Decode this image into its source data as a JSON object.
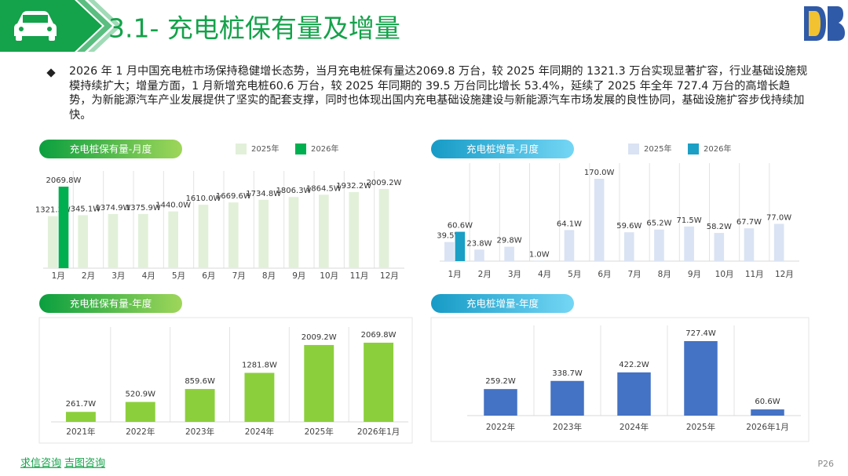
{
  "header": {
    "title": "3.1- 充电桩保有量及增量"
  },
  "summary": "2026 年 1 月中国充电桩市场保持稳健增长态势，当月充电桩保有量达2069.8 万台，较 2025 年同期的 1321.3 万台实现显著扩容，行业基础设施规模持续扩大；增量方面，1 月新增充电桩60.6 万台，较 2025 年同期的 39.5 万台同比增长 53.4%，延续了 2025 年全年 727.4 万台的高增长趋势，为新能源汽车产业发展提供了坚实的配套支撑，同时也体现出国内充电基础设施建设与新能源汽车市场发展的良性协同，基础设施扩容步伐持续加快。",
  "footer": {
    "brands": [
      "求信咨询",
      "吉图咨询"
    ],
    "page": "P26"
  },
  "chart_data": [
    {
      "type": "grouped_bar",
      "title": "充电桩保有量-月度",
      "categories": [
        "1月",
        "2月",
        "3月",
        "4月",
        "5月",
        "6月",
        "7月",
        "8月",
        "9月",
        "10月",
        "11月",
        "12月"
      ],
      "series": [
        {
          "name": "2025年",
          "color": "#e2f0d9",
          "values": [
            1321.3,
            1345.1,
            1374.9,
            1375.9,
            1440.0,
            1610.0,
            1669.6,
            1734.8,
            1806.3,
            1864.5,
            1932.2,
            2009.2
          ],
          "value_labels": [
            "1321.3W",
            "1345.1W",
            "1374.9W",
            "1375.9W",
            "1440.0W",
            "1610.0W",
            "1669.6W",
            "1734.8W",
            "1806.3W",
            "1864.5W",
            "1932.2W",
            "2009.2W"
          ]
        },
        {
          "name": "2026年",
          "color": "#00b050",
          "values": [
            2069.8,
            null,
            null,
            null,
            null,
            null,
            null,
            null,
            null,
            null,
            null,
            null
          ],
          "value_labels": [
            "2069.8W",
            null,
            null,
            null,
            null,
            null,
            null,
            null,
            null,
            null,
            null,
            null
          ]
        }
      ]
    },
    {
      "type": "grouped_bar",
      "title": "充电桩增量-月度",
      "categories": [
        "1月",
        "2月",
        "3月",
        "4月",
        "5月",
        "6月",
        "7月",
        "8月",
        "9月",
        "10月",
        "11月",
        "12月"
      ],
      "series": [
        {
          "name": "2025年",
          "color": "#dae3f3",
          "values": [
            39.5,
            23.8,
            29.8,
            1.0,
            64.1,
            170.0,
            59.6,
            65.2,
            71.5,
            58.2,
            67.7,
            77.0
          ],
          "value_labels": [
            "39.5W",
            "23.8W",
            "29.8W",
            "1.0W",
            "64.1W",
            "170.0W",
            "59.6W",
            "65.2W",
            "71.5W",
            "58.2W",
            "67.7W",
            "77.0W"
          ]
        },
        {
          "name": "2026年",
          "color": "#1b9fc4",
          "values": [
            60.6,
            null,
            null,
            null,
            null,
            null,
            null,
            null,
            null,
            null,
            null,
            null
          ],
          "value_labels": [
            "60.6W",
            null,
            null,
            null,
            null,
            null,
            null,
            null,
            null,
            null,
            null,
            null
          ]
        }
      ]
    },
    {
      "type": "bar",
      "title": "充电桩保有量-年度",
      "categories": [
        "2021年",
        "2022年",
        "2023年",
        "2024年",
        "2025年",
        "2026年1月"
      ],
      "values": [
        261.7,
        520.9,
        859.6,
        1281.8,
        2009.2,
        2069.8
      ],
      "value_labels": [
        "261.7W",
        "520.9W",
        "859.6W",
        "1281.8W",
        "2009.2W",
        "2069.8W"
      ],
      "color": "#8ccf3c"
    },
    {
      "type": "bar",
      "title": "充电桩增量-年度",
      "categories": [
        "2022年",
        "2023年",
        "2024年",
        "2025年",
        "2026年1月"
      ],
      "values": [
        259.2,
        338.7,
        422.2,
        727.4,
        60.6
      ],
      "value_labels": [
        "259.2W",
        "338.7W",
        "422.2W",
        "727.4W",
        "60.6W"
      ],
      "color": "#4472c4"
    }
  ]
}
